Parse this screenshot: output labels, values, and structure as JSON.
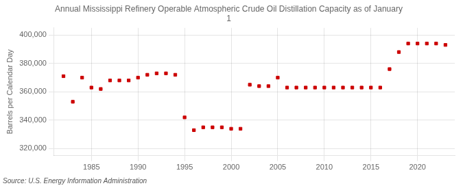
{
  "chart_data": {
    "type": "scatter",
    "title": "Annual Mississippi Refinery Operable Atmospheric Crude Oil Distillation Capacity as of January\n1",
    "ylabel": "Barrels per Calendar Day",
    "source": "Source: U.S. Energy Information Administration",
    "x": [
      1982,
      1983,
      1984,
      1985,
      1986,
      1987,
      1988,
      1989,
      1990,
      1991,
      1992,
      1993,
      1994,
      1995,
      1996,
      1997,
      1998,
      1999,
      2000,
      2001,
      2002,
      2003,
      2004,
      2005,
      2006,
      2007,
      2008,
      2009,
      2010,
      2011,
      2012,
      2013,
      2014,
      2015,
      2016,
      2017,
      2018,
      2019,
      2020,
      2021,
      2022,
      2023
    ],
    "values": [
      371000,
      353000,
      370000,
      363000,
      362000,
      368000,
      368000,
      368000,
      370000,
      372000,
      373000,
      373000,
      372000,
      342000,
      333000,
      335000,
      335000,
      335000,
      334000,
      334000,
      365000,
      364000,
      364000,
      370000,
      363000,
      363000,
      363000,
      363000,
      363000,
      363000,
      363000,
      363000,
      363000,
      363000,
      363000,
      376000,
      388000,
      394000,
      394000,
      394000,
      394000,
      393000
    ],
    "color": "#cc0000",
    "marker": "square",
    "xlim": [
      1981,
      2024
    ],
    "xticks": [
      1985,
      1990,
      1995,
      2000,
      2005,
      2010,
      2015,
      2020
    ],
    "ylim": [
      315000,
      405000
    ],
    "yticks": [
      {
        "value": 320000,
        "label": "320,000"
      },
      {
        "value": 340000,
        "label": "340,000"
      },
      {
        "value": 360000,
        "label": "360,000"
      },
      {
        "value": 380000,
        "label": "380,000"
      },
      {
        "value": 400000,
        "label": "400,000"
      }
    ],
    "grid": true
  }
}
